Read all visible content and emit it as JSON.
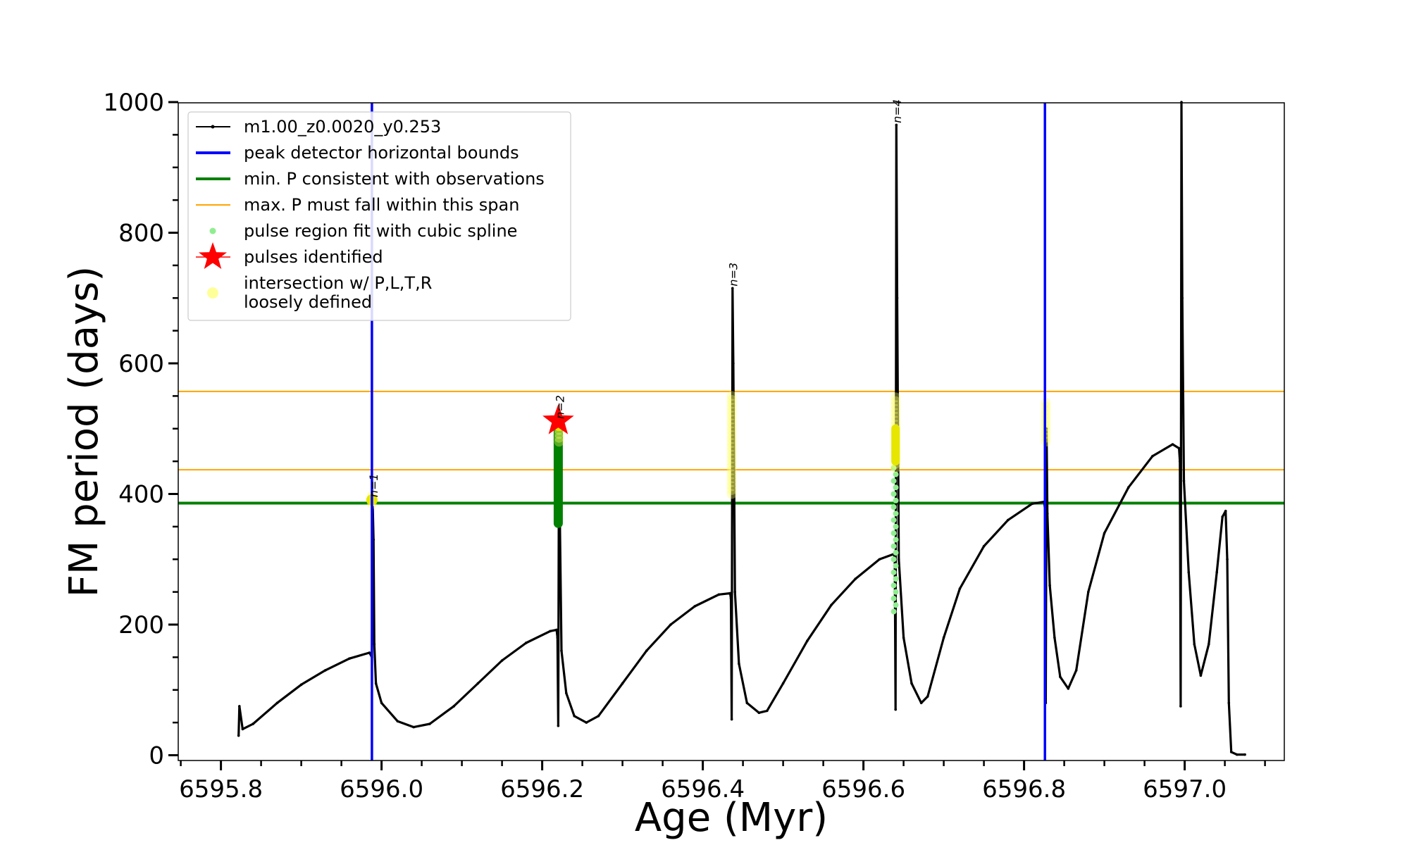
{
  "chart_data": {
    "type": "line",
    "title": "",
    "xlabel": "Age (Myr)",
    "ylabel": "FM period (days)",
    "xlim": [
      6595.73,
      6597.14
    ],
    "ylim": [
      0,
      1000
    ],
    "x_ticks": [
      6595.8,
      6596.0,
      6596.2,
      6596.4,
      6596.6,
      6596.8,
      6597.0
    ],
    "x_tick_labels": [
      "6595.8",
      "6596.0",
      "6596.2",
      "6596.4",
      "6596.6",
      "6596.8",
      "6597.0"
    ],
    "x_minor_step": 0.05,
    "y_ticks": [
      0,
      200,
      400,
      600,
      800,
      1000
    ],
    "y_tick_labels": [
      "0",
      "200",
      "400",
      "600",
      "800",
      "1000"
    ],
    "y_minor_step": 50,
    "series": [
      {
        "name": "m1.00_z0.0020_y0.253",
        "color": "#000000",
        "points": [
          [
            6595.822,
            30
          ],
          [
            6595.823,
            75
          ],
          [
            6595.827,
            40
          ],
          [
            6595.84,
            48
          ],
          [
            6595.87,
            80
          ],
          [
            6595.9,
            108
          ],
          [
            6595.93,
            130
          ],
          [
            6595.96,
            148
          ],
          [
            6595.985,
            157
          ],
          [
            6595.988,
            150
          ],
          [
            6595.989,
            380
          ],
          [
            6595.99,
            330
          ],
          [
            6595.991,
            170
          ],
          [
            6595.993,
            110
          ],
          [
            6596.0,
            80
          ],
          [
            6596.02,
            52
          ],
          [
            6596.04,
            43
          ],
          [
            6596.06,
            48
          ],
          [
            6596.09,
            75
          ],
          [
            6596.12,
            110
          ],
          [
            6596.15,
            145
          ],
          [
            6596.18,
            172
          ],
          [
            6596.21,
            190
          ],
          [
            6596.218,
            192
          ],
          [
            6596.219,
            180
          ],
          [
            6596.22,
            45
          ],
          [
            6596.221,
            500
          ],
          [
            6596.222,
            360
          ],
          [
            6596.224,
            160
          ],
          [
            6596.23,
            95
          ],
          [
            6596.24,
            60
          ],
          [
            6596.255,
            50
          ],
          [
            6596.27,
            60
          ],
          [
            6596.3,
            110
          ],
          [
            6596.33,
            160
          ],
          [
            6596.36,
            200
          ],
          [
            6596.39,
            228
          ],
          [
            6596.42,
            246
          ],
          [
            6596.434,
            248
          ],
          [
            6596.435,
            240
          ],
          [
            6596.436,
            55
          ],
          [
            6596.437,
            715
          ],
          [
            6596.438,
            600
          ],
          [
            6596.44,
            250
          ],
          [
            6596.445,
            140
          ],
          [
            6596.455,
            80
          ],
          [
            6596.47,
            65
          ],
          [
            6596.48,
            68
          ],
          [
            6596.5,
            110
          ],
          [
            6596.53,
            175
          ],
          [
            6596.56,
            230
          ],
          [
            6596.59,
            270
          ],
          [
            6596.62,
            300
          ],
          [
            6596.638,
            308
          ],
          [
            6596.639,
            300
          ],
          [
            6596.64,
            70
          ],
          [
            6596.641,
            965
          ],
          [
            6596.642,
            700
          ],
          [
            6596.644,
            300
          ],
          [
            6596.65,
            180
          ],
          [
            6596.66,
            110
          ],
          [
            6596.672,
            80
          ],
          [
            6596.68,
            90
          ],
          [
            6596.7,
            180
          ],
          [
            6596.72,
            255
          ],
          [
            6596.75,
            320
          ],
          [
            6596.78,
            360
          ],
          [
            6596.81,
            385
          ],
          [
            6596.825,
            388
          ],
          [
            6596.826,
            378
          ],
          [
            6596.827,
            80
          ],
          [
            6596.828,
            500
          ],
          [
            6596.829,
            370
          ],
          [
            6596.832,
            260
          ],
          [
            6596.838,
            180
          ],
          [
            6596.845,
            120
          ],
          [
            6596.855,
            102
          ],
          [
            6596.865,
            130
          ],
          [
            6596.88,
            250
          ],
          [
            6596.9,
            340
          ],
          [
            6596.93,
            410
          ],
          [
            6596.96,
            458
          ],
          [
            6596.985,
            476
          ],
          [
            6596.993,
            470
          ],
          [
            6596.994,
            450
          ],
          [
            6596.995,
            75
          ],
          [
            6596.996,
            1000
          ],
          [
            6596.997,
            700
          ],
          [
            6596.999,
            420
          ],
          [
            6597.005,
            280
          ],
          [
            6597.012,
            170
          ],
          [
            6597.02,
            122
          ],
          [
            6597.03,
            170
          ],
          [
            6597.04,
            280
          ],
          [
            6597.047,
            365
          ],
          [
            6597.051,
            374
          ],
          [
            6597.053,
            300
          ],
          [
            6597.055,
            80
          ],
          [
            6597.058,
            5
          ],
          [
            6597.065,
            1
          ],
          [
            6597.075,
            1
          ]
        ]
      }
    ],
    "vertical_lines": [
      {
        "name": "peak detector horizontal bounds",
        "x": 6595.988,
        "color": "#0000ff"
      },
      {
        "name": "peak detector horizontal bounds",
        "x": 6596.826,
        "color": "#0000ff"
      }
    ],
    "horizontal_lines": [
      {
        "name": "min. P consistent with observations",
        "y": 386,
        "color": "#008000"
      },
      {
        "name": "max. P must fall within this span",
        "y": 557,
        "color": "#ffa500"
      },
      {
        "name": "max. P must fall within this span",
        "y": 437,
        "color": "#ffa500"
      }
    ],
    "spline_regions": [
      {
        "x": 6596.639,
        "y_start": 220,
        "y_end": 440,
        "color": "#90ee90"
      }
    ],
    "green_segments": [
      {
        "x": 6596.22,
        "y_start": 355,
        "y_end": 497,
        "color": "#008000"
      }
    ],
    "loose_regions": [
      {
        "x": 6595.988,
        "y_start": 385,
        "y_end": 398
      },
      {
        "x": 6596.221,
        "y_start": 480,
        "y_end": 510
      },
      {
        "x": 6596.436,
        "y_start": 400,
        "y_end": 550
      },
      {
        "x": 6596.64,
        "y_start": 440,
        "y_end": 550
      },
      {
        "x": 6596.827,
        "y_start": 480,
        "y_end": 540
      }
    ],
    "pulses": [
      {
        "x": 6596.22,
        "y": 512,
        "color": "#ff0000"
      }
    ],
    "annotations": [
      {
        "text": "n=1",
        "x": 6595.995,
        "y": 395
      },
      {
        "text": "n=2",
        "x": 6596.227,
        "y": 515
      },
      {
        "text": "n=3",
        "x": 6596.443,
        "y": 718
      },
      {
        "text": "n=4",
        "x": 6596.647,
        "y": 968
      }
    ],
    "legend": {
      "position": "top-left",
      "entries": [
        {
          "label": "m1.00_z0.0020_y0.253",
          "kind": "line-dot",
          "color": "#000000"
        },
        {
          "label": "peak detector horizontal bounds",
          "kind": "line",
          "color": "#0000ff"
        },
        {
          "label": "min. P consistent with observations",
          "kind": "line",
          "color": "#008000"
        },
        {
          "label": "max. P must fall within this span",
          "kind": "thin-line",
          "color": "#ffa500"
        },
        {
          "label": "pulse region fit with cubic spline",
          "kind": "dot",
          "color": "#90ee90"
        },
        {
          "label": "pulses identified",
          "kind": "star",
          "color": "#ff0000"
        },
        {
          "label": "intersection w/ P,L,T,R",
          "kind": "big-dot",
          "color": "#ffff99"
        },
        {
          "label": "loosely defined",
          "kind": "text-only",
          "color": ""
        }
      ]
    }
  }
}
